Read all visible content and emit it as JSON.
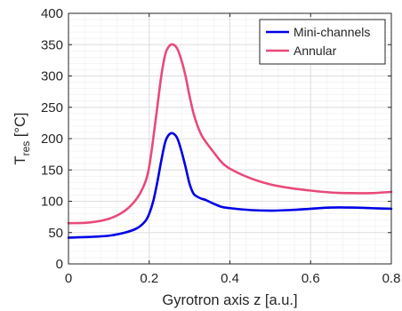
{
  "chart_data": {
    "type": "line",
    "xlabel": "Gyrotron axis z [a.u.]",
    "ylabel": {
      "main": "T",
      "subscript": "res",
      "unit": " [°C]"
    },
    "xlim": [
      0,
      0.8
    ],
    "ylim": [
      0,
      400
    ],
    "xticks": [
      0,
      0.2,
      0.4,
      0.6,
      0.8
    ],
    "xtick_labels": [
      "0",
      "0.2",
      "0.4",
      "0.6",
      "0.8"
    ],
    "yticks": [
      0,
      50,
      100,
      150,
      200,
      250,
      300,
      350,
      400
    ],
    "ytick_labels": [
      "0",
      "50",
      "100",
      "150",
      "200",
      "250",
      "300",
      "350",
      "400"
    ],
    "grid": true,
    "minor_grid": true,
    "legend_position": "top-right",
    "series": [
      {
        "name": "Mini-channels",
        "color": "#0000e6",
        "x": [
          0,
          0.05,
          0.1,
          0.14,
          0.17,
          0.19,
          0.2,
          0.21,
          0.22,
          0.23,
          0.24,
          0.25,
          0.26,
          0.27,
          0.28,
          0.29,
          0.3,
          0.31,
          0.32,
          0.33,
          0.34,
          0.36,
          0.38,
          0.4,
          0.45,
          0.5,
          0.55,
          0.6,
          0.65,
          0.7,
          0.75,
          0.8
        ],
        "y": [
          42,
          43,
          45,
          50,
          57,
          68,
          80,
          100,
          130,
          165,
          195,
          207,
          208,
          200,
          180,
          155,
          128,
          112,
          107,
          104,
          102,
          96,
          91,
          89,
          86,
          85,
          86,
          88,
          90,
          90,
          89,
          88
        ]
      },
      {
        "name": "Annular",
        "color": "#e84a7a",
        "x": [
          0,
          0.05,
          0.1,
          0.14,
          0.17,
          0.19,
          0.2,
          0.21,
          0.22,
          0.23,
          0.24,
          0.25,
          0.26,
          0.27,
          0.28,
          0.29,
          0.3,
          0.31,
          0.32,
          0.33,
          0.34,
          0.36,
          0.38,
          0.4,
          0.45,
          0.5,
          0.55,
          0.6,
          0.65,
          0.7,
          0.75,
          0.8
        ],
        "y": [
          65,
          66,
          72,
          85,
          105,
          130,
          155,
          200,
          250,
          300,
          335,
          348,
          350,
          343,
          325,
          300,
          268,
          240,
          220,
          205,
          195,
          178,
          162,
          152,
          137,
          127,
          121,
          117,
          114,
          113,
          113,
          115
        ]
      }
    ]
  }
}
